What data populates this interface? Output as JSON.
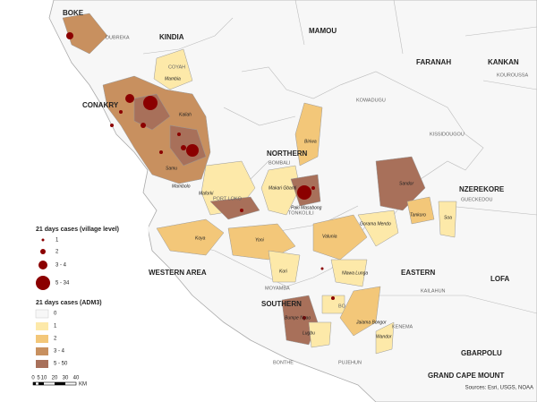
{
  "map": {
    "regions": [
      "BOKE",
      "MAMOU",
      "FARANAH",
      "KANKAN",
      "KINDIA",
      "CONAKRY",
      "NORTHERN",
      "NZEREKORE",
      "WESTERN AREA",
      "SOUTHERN",
      "EASTERN",
      "LOFA",
      "GBARPOLU",
      "GRAND CAPE MOUNT"
    ],
    "districts": [
      "DUBREKA",
      "COYAH",
      "KOUROUSSA",
      "KOWADUGU",
      "BOMBALI",
      "PORT LOKO",
      "TONKOLILI",
      "MOYAMBA",
      "KENEMA",
      "KAILAHUN",
      "PUJEHUN",
      "BONTHE",
      "GUECKEDOU",
      "KISSIDOUGOU",
      "BO"
    ],
    "places": [
      "Mambia",
      "Kaliah",
      "Biriwa",
      "Mambolo",
      "Maforki",
      "Makari Gbanti",
      "Paki Masabong",
      "Koya",
      "Yoni",
      "Kori",
      "Valunia",
      "Gorama Mendo",
      "Nlawa Lunga",
      "Bumpe Ngao",
      "Lugbu",
      "Jaiama Bongor",
      "Sandor",
      "Soa",
      "Tankoro",
      "Wandor",
      "Samu"
    ],
    "legend_village": {
      "title": "21 days cases (village level)",
      "items": [
        "1",
        "2",
        "3 - 4",
        "5 - 34"
      ]
    },
    "legend_adm3": {
      "title": "21 days cases (ADM3)",
      "items": [
        "0",
        "1",
        "2",
        "3 - 4",
        "5 - 50"
      ]
    },
    "scale": {
      "ticks": [
        "0",
        "5",
        "10",
        "20",
        "30",
        "40"
      ],
      "unit": "KM"
    },
    "source": "Sources: Esri, USGS, NOAA"
  }
}
